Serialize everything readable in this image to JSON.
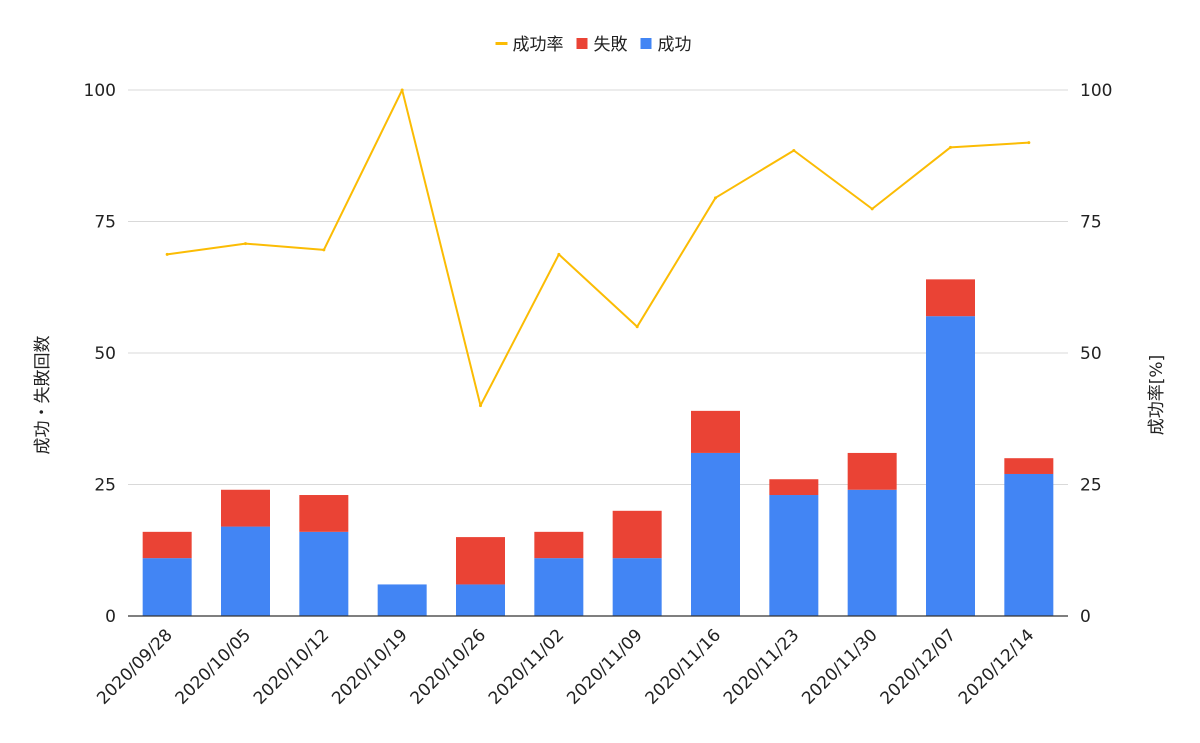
{
  "chart_data": {
    "type": "bar",
    "stacked": true,
    "categories": [
      "2020/09/28",
      "2020/10/05",
      "2020/10/12",
      "2020/10/19",
      "2020/10/26",
      "2020/11/02",
      "2020/11/09",
      "2020/11/16",
      "2020/11/23",
      "2020/11/30",
      "2020/12/07",
      "2020/12/14"
    ],
    "series": [
      {
        "name": "成功",
        "type": "bar",
        "axis": "left",
        "color": "#4285F4",
        "values": [
          11,
          17,
          16,
          6,
          6,
          11,
          11,
          31,
          23,
          24,
          57,
          27
        ]
      },
      {
        "name": "失敗",
        "type": "bar",
        "axis": "left",
        "color": "#EA4335",
        "values": [
          5,
          7,
          7,
          0,
          9,
          5,
          9,
          8,
          3,
          7,
          7,
          3
        ]
      },
      {
        "name": "成功率",
        "type": "line",
        "axis": "right",
        "color": "#FBBC04",
        "values": [
          68.75,
          70.8,
          69.6,
          100,
          40,
          68.75,
          55,
          79.5,
          88.5,
          77.4,
          89.1,
          90
        ]
      }
    ],
    "legend": {
      "position": "top",
      "items": [
        "成功率",
        "失敗",
        "成功"
      ]
    },
    "ylabel": "成功・失敗回数",
    "ylabel_right": "成功率[%]",
    "ylim": [
      0,
      100
    ],
    "ylim_right": [
      0,
      100
    ],
    "yticks": [
      "0",
      "25",
      "50",
      "75",
      "100"
    ],
    "yticks_right": [
      "0",
      "25",
      "50",
      "75",
      "100"
    ],
    "grid": true
  }
}
